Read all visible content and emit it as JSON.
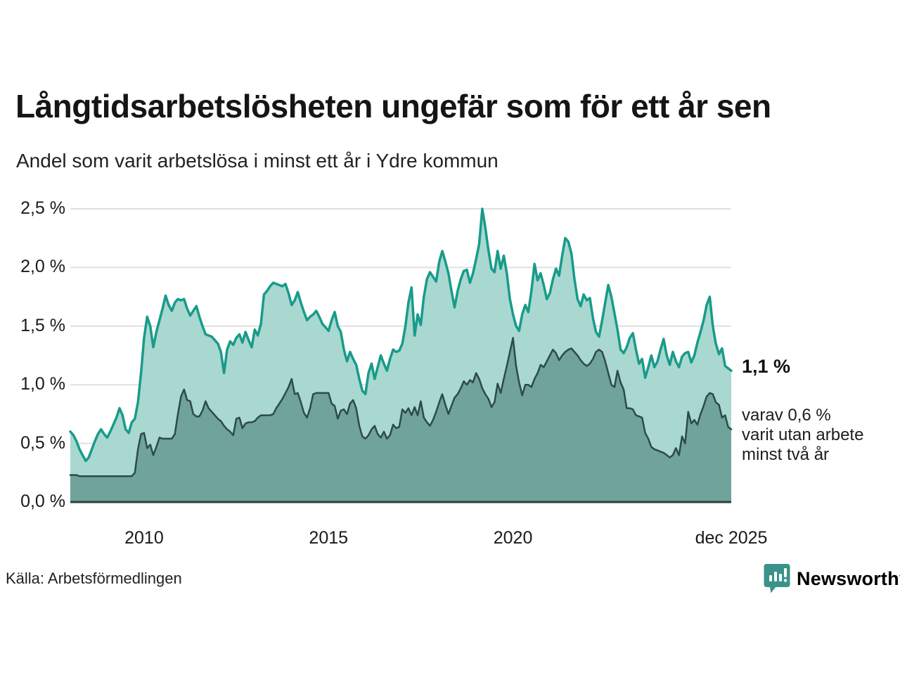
{
  "title": "Långtidsarbetslösheten ungefär som för ett år sen",
  "subtitle": "Andel som varit arbetslösa i minst ett år i Ydre kommun",
  "source": "Källa: Arbetsförmedlingen",
  "logo": {
    "text": "Newsworthy",
    "icon": "bar-chart-speech-bubble-icon",
    "color": "#3b9289"
  },
  "annotations": {
    "latest_value": "1,1 %",
    "secondary_line1": "varav 0,6 %",
    "secondary_line2": "varit utan arbete",
    "secondary_line3": "minst två år"
  },
  "y_axis": {
    "labels": [
      "2,5 %",
      "2,0 %",
      "1,5 %",
      "1,0 %",
      "0,5 %",
      "0,0 %"
    ],
    "values": [
      2.5,
      2.0,
      1.5,
      1.0,
      0.5,
      0.0
    ]
  },
  "x_axis": {
    "ticks": [
      {
        "label": "2010",
        "t": 2010.0
      },
      {
        "label": "2015",
        "t": 2015.0
      },
      {
        "label": "2020",
        "t": 2020.0
      },
      {
        "label": "dec 2025",
        "t": 2025.917
      }
    ]
  },
  "colors": {
    "gridline": "#e0e0e0",
    "axis": "#2b3f3b",
    "teal_line": "#189b8a",
    "teal_fill": "#a9d8d1",
    "dark_line": "#2d4b47",
    "dark_fill": "#6fa39c",
    "text": "#1a1a1a",
    "logo": "#3b9289"
  },
  "chart_data": {
    "type": "area",
    "title": "Andel som varit arbetslösa i minst ett år i Ydre kommun",
    "x_unit": "monthly, Jan 2008 - Dec 2025",
    "x_range": [
      2008.0,
      2025.917
    ],
    "ylim": [
      0,
      2.5
    ],
    "grid": true,
    "series": [
      {
        "name": "Andel arbetslösa minst ett år",
        "line_color": "#189b8a",
        "fill_color": "#a9d8d1",
        "values": [
          0.6,
          0.57,
          0.52,
          0.45,
          0.4,
          0.35,
          0.38,
          0.45,
          0.52,
          0.58,
          0.62,
          0.58,
          0.55,
          0.6,
          0.66,
          0.72,
          0.8,
          0.74,
          0.62,
          0.59,
          0.68,
          0.71,
          0.85,
          1.1,
          1.4,
          1.58,
          1.5,
          1.32,
          1.45,
          1.55,
          1.65,
          1.76,
          1.68,
          1.63,
          1.7,
          1.73,
          1.72,
          1.73,
          1.65,
          1.59,
          1.63,
          1.67,
          1.58,
          1.5,
          1.43,
          1.42,
          1.41,
          1.38,
          1.35,
          1.28,
          1.1,
          1.3,
          1.37,
          1.34,
          1.4,
          1.43,
          1.36,
          1.45,
          1.38,
          1.32,
          1.47,
          1.42,
          1.52,
          1.77,
          1.8,
          1.84,
          1.87,
          1.86,
          1.85,
          1.84,
          1.86,
          1.78,
          1.68,
          1.72,
          1.79,
          1.7,
          1.62,
          1.55,
          1.58,
          1.6,
          1.63,
          1.58,
          1.52,
          1.49,
          1.46,
          1.55,
          1.62,
          1.5,
          1.45,
          1.3,
          1.2,
          1.28,
          1.22,
          1.17,
          1.05,
          0.95,
          0.92,
          1.1,
          1.18,
          1.05,
          1.15,
          1.25,
          1.18,
          1.12,
          1.22,
          1.3,
          1.28,
          1.29,
          1.35,
          1.5,
          1.7,
          1.83,
          1.42,
          1.6,
          1.51,
          1.75,
          1.9,
          1.96,
          1.92,
          1.88,
          2.05,
          2.14,
          2.05,
          1.95,
          1.8,
          1.66,
          1.8,
          1.9,
          1.97,
          1.98,
          1.87,
          1.95,
          2.07,
          2.2,
          2.5,
          2.34,
          2.15,
          1.99,
          1.96,
          2.14,
          1.99,
          2.1,
          1.95,
          1.73,
          1.6,
          1.5,
          1.46,
          1.6,
          1.68,
          1.62,
          1.8,
          2.03,
          1.89,
          1.95,
          1.85,
          1.73,
          1.78,
          1.9,
          1.99,
          1.93,
          2.1,
          2.25,
          2.22,
          2.12,
          1.9,
          1.73,
          1.67,
          1.77,
          1.72,
          1.74,
          1.57,
          1.45,
          1.41,
          1.55,
          1.7,
          1.85,
          1.75,
          1.61,
          1.47,
          1.3,
          1.27,
          1.32,
          1.4,
          1.44,
          1.3,
          1.18,
          1.22,
          1.06,
          1.15,
          1.25,
          1.15,
          1.2,
          1.3,
          1.39,
          1.25,
          1.17,
          1.28,
          1.2,
          1.15,
          1.24,
          1.27,
          1.28,
          1.19,
          1.25,
          1.36,
          1.45,
          1.55,
          1.68,
          1.75,
          1.5,
          1.35,
          1.26,
          1.31,
          1.16,
          1.14,
          1.12
        ]
      },
      {
        "name": "Varav utan arbete minst två år",
        "line_color": "#2d4b47",
        "fill_color": "#6fa39c",
        "values": [
          0.23,
          0.23,
          0.23,
          0.22,
          0.22,
          0.22,
          0.22,
          0.22,
          0.22,
          0.22,
          0.22,
          0.22,
          0.22,
          0.22,
          0.22,
          0.22,
          0.22,
          0.22,
          0.22,
          0.22,
          0.22,
          0.25,
          0.45,
          0.58,
          0.59,
          0.46,
          0.49,
          0.4,
          0.47,
          0.55,
          0.54,
          0.54,
          0.54,
          0.54,
          0.58,
          0.75,
          0.9,
          0.96,
          0.87,
          0.86,
          0.75,
          0.73,
          0.73,
          0.78,
          0.86,
          0.8,
          0.77,
          0.74,
          0.71,
          0.69,
          0.65,
          0.62,
          0.6,
          0.57,
          0.71,
          0.72,
          0.63,
          0.67,
          0.68,
          0.68,
          0.69,
          0.72,
          0.74,
          0.74,
          0.74,
          0.74,
          0.75,
          0.8,
          0.84,
          0.88,
          0.93,
          0.98,
          1.05,
          0.92,
          0.93,
          0.85,
          0.76,
          0.72,
          0.8,
          0.92,
          0.93,
          0.93,
          0.93,
          0.93,
          0.93,
          0.84,
          0.82,
          0.71,
          0.78,
          0.79,
          0.75,
          0.84,
          0.87,
          0.8,
          0.65,
          0.56,
          0.54,
          0.57,
          0.62,
          0.65,
          0.58,
          0.55,
          0.6,
          0.54,
          0.57,
          0.66,
          0.63,
          0.64,
          0.79,
          0.76,
          0.8,
          0.74,
          0.81,
          0.74,
          0.86,
          0.72,
          0.68,
          0.65,
          0.7,
          0.77,
          0.85,
          0.92,
          0.83,
          0.75,
          0.82,
          0.89,
          0.92,
          0.97,
          1.03,
          1.0,
          1.04,
          1.02,
          1.1,
          1.05,
          0.97,
          0.92,
          0.88,
          0.81,
          0.85,
          1.01,
          0.93,
          1.05,
          1.16,
          1.28,
          1.4,
          1.16,
          1.02,
          0.91,
          1.0,
          1.0,
          0.98,
          1.05,
          1.1,
          1.17,
          1.15,
          1.2,
          1.25,
          1.3,
          1.27,
          1.21,
          1.25,
          1.28,
          1.3,
          1.31,
          1.28,
          1.25,
          1.21,
          1.18,
          1.16,
          1.18,
          1.22,
          1.28,
          1.3,
          1.28,
          1.2,
          1.1,
          1.0,
          0.98,
          1.12,
          1.02,
          0.96,
          0.8,
          0.8,
          0.79,
          0.74,
          0.73,
          0.72,
          0.59,
          0.54,
          0.47,
          0.45,
          0.44,
          0.43,
          0.42,
          0.4,
          0.38,
          0.4,
          0.46,
          0.4,
          0.56,
          0.5,
          0.77,
          0.67,
          0.7,
          0.66,
          0.75,
          0.82,
          0.9,
          0.93,
          0.92,
          0.85,
          0.83,
          0.72,
          0.74,
          0.64,
          0.62
        ]
      }
    ]
  }
}
